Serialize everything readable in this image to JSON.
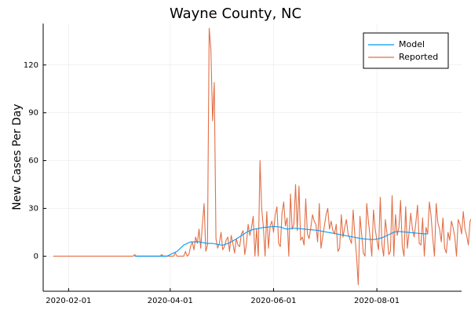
{
  "chart_data": {
    "type": "line",
    "title": "Wayne County, NC",
    "xlabel": "",
    "ylabel": "New Cases Per Day",
    "x_start": "2020-01-23",
    "x_end": "2020-09-18",
    "xlim": [
      "2020-01-17",
      "2020-09-20"
    ],
    "ylim": [
      -22,
      146
    ],
    "x_ticks": [
      "2020-02-01",
      "2020-04-01",
      "2020-06-01",
      "2020-08-01"
    ],
    "y_ticks": [
      0,
      30,
      60,
      90,
      120
    ],
    "grid": true,
    "legend_position": "top-right",
    "colors": {
      "model": "#009AFA",
      "reported": "#E26F46"
    },
    "series": [
      {
        "name": "Model",
        "start": "2020-03-11",
        "values": [
          0,
          0,
          0,
          0,
          0,
          0,
          0,
          0,
          0,
          0,
          0,
          0,
          0,
          0,
          0,
          0,
          0,
          0,
          0,
          0,
          0.5,
          1,
          1.5,
          2,
          2.5,
          3,
          4,
          5,
          6,
          7,
          7.5,
          8,
          8.5,
          9,
          9,
          9,
          9,
          9,
          9,
          8.8,
          8.6,
          8.4,
          8.2,
          8,
          8,
          8,
          8,
          7.8,
          7.6,
          7.4,
          7.2,
          7,
          7,
          7.2,
          7.6,
          8,
          8.5,
          9,
          9.6,
          10.2,
          10.8,
          11.5,
          12.2,
          12.9,
          13.6,
          14.3,
          15,
          15.5,
          16,
          16.4,
          16.8,
          17,
          17.2,
          17.4,
          17.6,
          17.8,
          18,
          18.1,
          18.2,
          18.3,
          18.4,
          18.5,
          18.6,
          18.6,
          18.5,
          18.4,
          18.3,
          18,
          17.5,
          17.2,
          17,
          17.1,
          17.3,
          17.4,
          17.5,
          17.5,
          17.4,
          17.3,
          17.2,
          17.1,
          17,
          16.9,
          16.8,
          16.7,
          16.6,
          16.5,
          16.4,
          16.3,
          16.2,
          16,
          15.8,
          15.6,
          15.4,
          15.2,
          15,
          14.8,
          14.6,
          14.4,
          14.2,
          14,
          13.8,
          13.6,
          13.4,
          13.2,
          13,
          12.8,
          12.6,
          12.4,
          12.2,
          12,
          11.8,
          11.6,
          11.4,
          11.2,
          11,
          10.9,
          10.8,
          10.7,
          10.6,
          10.5,
          10.5,
          10.5,
          10.6,
          10.8,
          11,
          11.3,
          11.6,
          12,
          12.5,
          13,
          13.5,
          14,
          14.5,
          15,
          15.3,
          15.5,
          15.5,
          15.4,
          15.3,
          15.2,
          15.1,
          15,
          14.9,
          14.8,
          14.7,
          14.6,
          14.5,
          14.4,
          14.3,
          14.2,
          14.1,
          14,
          14,
          14
        ]
      },
      {
        "name": "Reported",
        "start": "2020-01-23",
        "values": [
          0,
          0,
          0,
          0,
          0,
          0,
          0,
          0,
          0,
          0,
          0,
          0,
          0,
          0,
          0,
          0,
          0,
          0,
          0,
          0,
          0,
          0,
          0,
          0,
          0,
          0,
          0,
          0,
          0,
          0,
          0,
          0,
          0,
          0,
          0,
          0,
          0,
          0,
          0,
          0,
          0,
          0,
          0,
          0,
          0,
          0,
          0,
          0,
          1,
          0,
          0,
          0,
          0,
          0,
          0,
          0,
          0,
          0,
          0,
          0,
          0,
          0,
          0,
          0,
          1,
          0,
          0,
          0,
          0,
          0,
          0,
          0,
          2,
          0,
          0,
          0,
          0,
          0,
          3,
          0,
          1,
          6,
          9,
          4,
          12,
          8,
          17,
          5,
          20,
          33,
          3,
          7,
          143,
          130,
          85,
          109,
          11,
          5,
          8,
          15,
          4,
          6,
          10,
          12,
          3,
          13,
          8,
          2,
          11,
          7,
          6,
          14,
          16,
          1,
          8,
          20,
          13,
          18,
          25,
          0,
          17,
          0,
          60,
          30,
          18,
          0,
          28,
          5,
          19,
          22,
          15,
          26,
          31,
          8,
          6,
          27,
          34,
          19,
          24,
          0,
          39,
          17,
          20,
          45,
          16,
          44,
          10,
          12,
          7,
          36,
          14,
          11,
          18,
          26,
          22,
          20,
          9,
          33,
          5,
          12,
          19,
          26,
          30,
          17,
          22,
          16,
          14,
          20,
          3,
          5,
          26,
          12,
          18,
          23,
          14,
          11,
          8,
          29,
          13,
          0,
          -18,
          25,
          14,
          2,
          0,
          33,
          22,
          12,
          0,
          29,
          17,
          10,
          4,
          37,
          7,
          0,
          23,
          14,
          1,
          3,
          38,
          0,
          26,
          13,
          18,
          35,
          6,
          0,
          31,
          5,
          15,
          27,
          17,
          12,
          21,
          32,
          8,
          7,
          24,
          0,
          18,
          14,
          34,
          25,
          11,
          0,
          33,
          21,
          17,
          9,
          24,
          5,
          2,
          15,
          10,
          22,
          18,
          12,
          0,
          23,
          20,
          14,
          28,
          17,
          13,
          7,
          22,
          24,
          1,
          25,
          16,
          13,
          4,
          21,
          11,
          23,
          29,
          25,
          19,
          5,
          22,
          27,
          30,
          25,
          6
        ]
      }
    ]
  }
}
